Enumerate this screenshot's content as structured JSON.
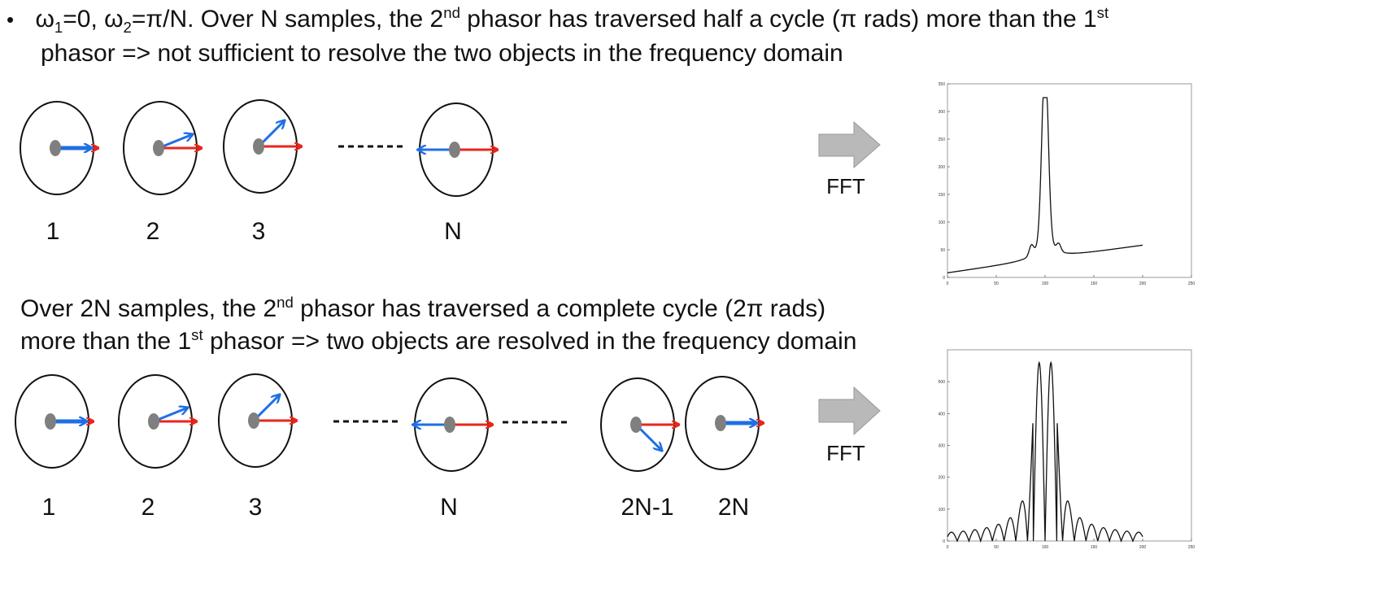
{
  "line1": {
    "bullet": "•",
    "w1a": "ω",
    "w1s": "1",
    "w1b": "=0, ",
    "w2a": "ω",
    "w2s": "2",
    "w2b": "=π/N.  Over N samples, the 2",
    "sup1": "nd",
    "t1": " phasor has traversed half a cycle (π rads) more than the 1",
    "sup2": "st"
  },
  "line2": "phasor => not sufficient to resolve the two objects in the frequency domain",
  "para2": {
    "a": "Over 2N samples, the 2",
    "a_sup": "nd",
    "b": " phasor has traversed a complete cycle (2π rads)",
    "c": "more than the 1",
    "c_sup": "st",
    "d": " phasor =>  two objects are resolved in  the frequency domain"
  },
  "row1_labels": [
    "1",
    "2",
    "3",
    "N"
  ],
  "row2_labels": [
    "1",
    "2",
    "3",
    "N",
    "2N-1",
    "2N"
  ],
  "fft_label": "FFT",
  "colors": {
    "red": "#e8261b",
    "blue": "#1f6fe5",
    "hub": "#7f7f7f",
    "arrow_fill": "#b9b9b9"
  },
  "chart_data": [
    {
      "type": "line",
      "title": "",
      "xlim": [
        0,
        250
      ],
      "ylim": [
        0,
        350
      ],
      "xticks": [
        "0",
        "50",
        "100",
        "150",
        "200",
        "250"
      ],
      "yticks": [
        "0",
        "50",
        "100",
        "150",
        "200",
        "250",
        "300",
        "350"
      ],
      "series": [
        {
          "x_range": [
            0,
            200
          ],
          "peaks": [
            100
          ],
          "peak_value": 325,
          "baseline": 8
        }
      ]
    },
    {
      "type": "line",
      "title": "",
      "xlim": [
        0,
        250
      ],
      "ylim": [
        0,
        600
      ],
      "xticks": [
        "0",
        "50",
        "100",
        "150",
        "200",
        "250"
      ],
      "yticks": [
        "0",
        "100",
        "200",
        "300",
        "400",
        "500"
      ],
      "series": [
        {
          "x_range": [
            0,
            200
          ],
          "peaks": [
            94,
            106
          ],
          "peak_value": 560,
          "sidelobe_spacing": 12
        }
      ]
    }
  ]
}
